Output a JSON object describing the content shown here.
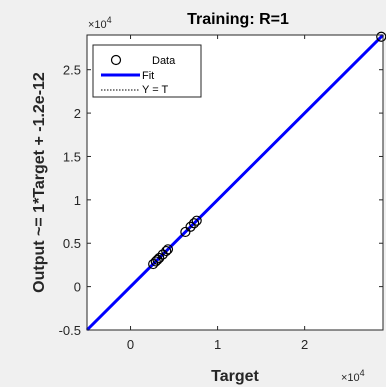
{
  "chart_data": {
    "type": "scatter",
    "title": "Training: R=1",
    "xlabel": "Target",
    "ylabel": "Output ~= 1*Target + -1.2e-12",
    "x_exponent": "×10",
    "x_exponent_power": "4",
    "y_exponent": "×10",
    "y_exponent_power": "4",
    "xlim": [
      -0.5,
      2.9
    ],
    "ylim": [
      -0.5,
      2.9
    ],
    "x_ticks": [
      0,
      1,
      2
    ],
    "x_tick_labels": [
      "0",
      "1",
      "2"
    ],
    "y_ticks": [
      -0.5,
      0,
      0.5,
      1,
      1.5,
      2,
      2.5
    ],
    "y_tick_labels": [
      "-0.5",
      "0",
      "0.5",
      "1",
      "1.5",
      "2",
      "2.5"
    ],
    "grid": false,
    "legend_position": "top-left",
    "series": [
      {
        "name": "Data",
        "kind": "scatter",
        "marker": "circle",
        "color": "#000000",
        "points": [
          [
            0.26,
            0.26
          ],
          [
            0.29,
            0.29
          ],
          [
            0.31,
            0.31
          ],
          [
            0.33,
            0.33
          ],
          [
            0.37,
            0.37
          ],
          [
            0.41,
            0.41
          ],
          [
            0.43,
            0.43
          ],
          [
            0.63,
            0.63
          ],
          [
            0.69,
            0.69
          ],
          [
            0.73,
            0.73
          ],
          [
            0.76,
            0.76
          ],
          [
            2.88,
            2.88
          ]
        ]
      },
      {
        "name": "Fit",
        "kind": "line",
        "color": "#0000ff",
        "slope": 1,
        "intercept": 0
      },
      {
        "name": "Y = T",
        "kind": "line",
        "style": "dotted",
        "color": "#000000",
        "slope": 1,
        "intercept": 0
      }
    ]
  }
}
